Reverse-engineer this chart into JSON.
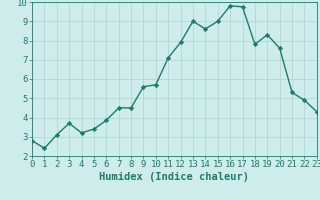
{
  "title": "",
  "xlabel": "Humidex (Indice chaleur)",
  "ylabel": "",
  "x": [
    0,
    1,
    2,
    3,
    4,
    5,
    6,
    7,
    8,
    9,
    10,
    11,
    12,
    13,
    14,
    15,
    16,
    17,
    18,
    19,
    20,
    21,
    22,
    23
  ],
  "y": [
    2.8,
    2.4,
    3.1,
    3.7,
    3.2,
    3.4,
    3.85,
    4.5,
    4.5,
    5.6,
    5.7,
    7.1,
    7.9,
    9.0,
    8.6,
    9.0,
    9.8,
    9.75,
    7.8,
    8.3,
    7.6,
    5.3,
    4.9,
    4.3
  ],
  "ylim": [
    2,
    10
  ],
  "xlim": [
    0,
    23
  ],
  "yticks": [
    2,
    3,
    4,
    5,
    6,
    7,
    8,
    9,
    10
  ],
  "xticks": [
    0,
    1,
    2,
    3,
    4,
    5,
    6,
    7,
    8,
    9,
    10,
    11,
    12,
    13,
    14,
    15,
    16,
    17,
    18,
    19,
    20,
    21,
    22,
    23
  ],
  "line_color": "#1f7a6e",
  "marker": "D",
  "marker_size": 2.2,
  "bg_color": "#ceecea",
  "grid_color": "#b2d8d4",
  "tick_color": "#1f7a6e",
  "label_color": "#1f7a6e",
  "font_family": "monospace",
  "xlabel_fontsize": 7.5,
  "tick_fontsize": 6.5,
  "linewidth": 1.0
}
